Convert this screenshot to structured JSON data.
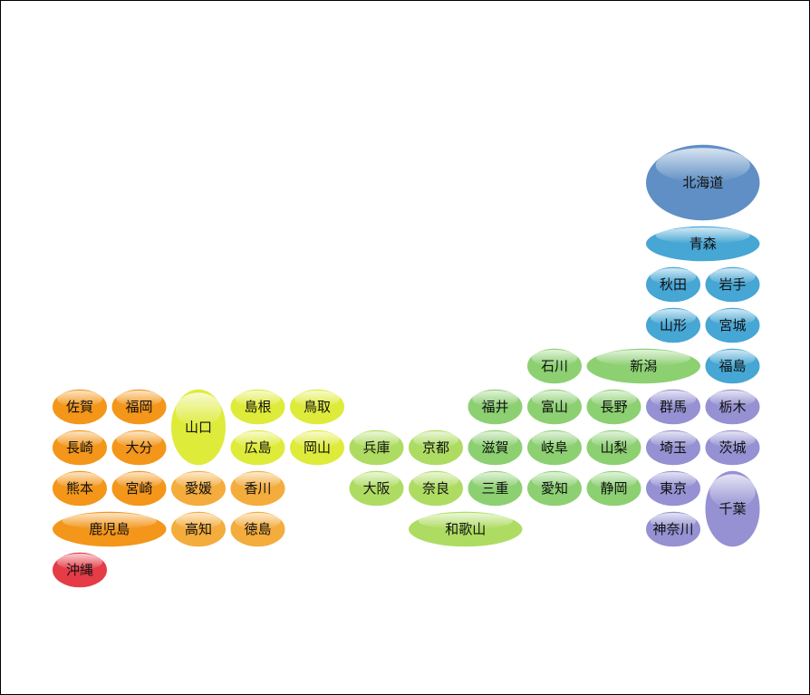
{
  "prefectures": [
    "北海道",
    "青森",
    "秋田",
    "岩手",
    "山形",
    "宮城",
    "福島",
    "石川",
    "新潟",
    "福井",
    "富山",
    "長野",
    "群馬",
    "栃木",
    "滋賀",
    "岐阜",
    "山梨",
    "埼玉",
    "茨城",
    "三重",
    "愛知",
    "静岡",
    "東京",
    "千葉",
    "神奈川",
    "兵庫",
    "京都",
    "大阪",
    "奈良",
    "和歌山",
    "島根",
    "鳥取",
    "広島",
    "岡山",
    "山口",
    "愛媛",
    "香川",
    "高知",
    "徳島",
    "佐賀",
    "福岡",
    "長崎",
    "大分",
    "熊本",
    "宮崎",
    "鹿児島",
    "沖縄"
  ]
}
